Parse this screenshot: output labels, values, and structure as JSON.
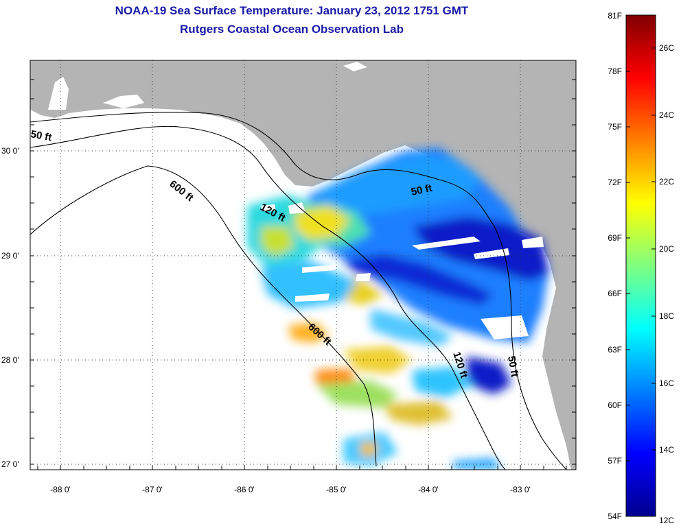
{
  "title": {
    "line1": "NOAA-19 Sea Surface Temperature:  January 23, 2012 1751 GMT",
    "line2": "Rutgers Coastal Ocean Observation Lab"
  },
  "map": {
    "lat_labels": [
      "30 0'",
      "29 0'",
      "28 0'",
      "27 0'"
    ],
    "lon_labels": [
      "-88 0'",
      "-87 0'",
      "-86 0'",
      "-85 0'",
      "-84 0'",
      "-83 0'"
    ],
    "contours": {
      "c50_west": "50 ft",
      "c600_north": "600 ft",
      "c120_north": "120 ft",
      "c50_east": "50 ft",
      "c600_south": "600 ft",
      "c120_south": "120 ft",
      "c50_south": "50 ft"
    },
    "colors": {
      "land": "#b4b4b4",
      "water": "#ffffff",
      "contour": "#000000"
    }
  },
  "colorbar": {
    "f_labels": [
      "81F",
      "78F",
      "75F",
      "72F",
      "69F",
      "66F",
      "63F",
      "60F",
      "57F",
      "54F"
    ],
    "c_labels": [
      "26C",
      "24C",
      "22C",
      "20C",
      "18C",
      "16C",
      "14C",
      "12C"
    ],
    "range_f": [
      54,
      81
    ],
    "range_c": [
      12,
      27
    ]
  }
}
